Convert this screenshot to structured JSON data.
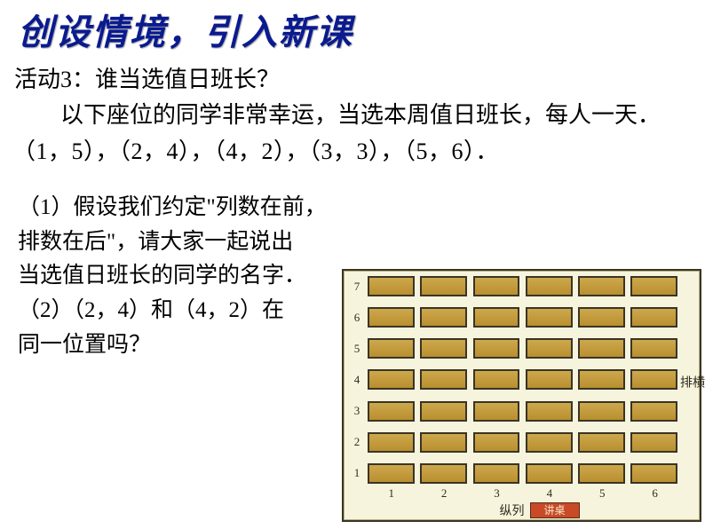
{
  "title": {
    "text": "创设情境，引入新课",
    "fontsize": 40,
    "color": "#0a1a8f"
  },
  "activity": {
    "heading": "活动3：谁当选值日班长？",
    "description": "以下座位的同学非常幸运，当选本周值日班长，每人一天．",
    "coord_line": "（1，5），（2，4），（4，2），（3，3），（5，6）．",
    "fontsize": 26
  },
  "questions": {
    "q1_l1": "（1）假设我们约定\"列数在前，",
    "q1_l2": "排数在后\"，请大家一起说出",
    "q1_l3": "当选值日班长的同学的名字．",
    "q2_l1": "（2）（2，4）和（4，2）在",
    "q2_l2": "同一位置吗？",
    "fontsize": 25
  },
  "seating": {
    "rows": 7,
    "cols": 6,
    "row_labels": [
      "7",
      "6",
      "5",
      "4",
      "3",
      "2",
      "1"
    ],
    "col_labels": [
      "1",
      "2",
      "3",
      "4",
      "5",
      "6"
    ],
    "desk_color": "#b98f2f",
    "desk_border": "#3b3425",
    "background": "#f7f4de",
    "frame_border": "#3a3626",
    "side_label_right": {
      "l1": "横",
      "l2": "排"
    },
    "bottom_vertical_label": "纵列",
    "podium_label": "讲桌",
    "podium_color": "#c94a27",
    "label_fontsize": 13,
    "side_fontsize": 14,
    "podium_fontsize": 12
  }
}
